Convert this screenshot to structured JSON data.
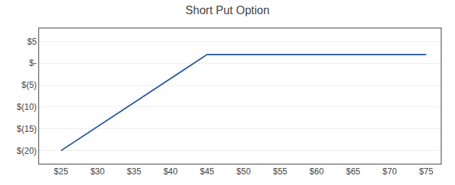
{
  "chart_data": {
    "type": "line",
    "title": "Short Put Option",
    "x": [
      25,
      45,
      50,
      55,
      60,
      65,
      70,
      75
    ],
    "values": [
      -20,
      2,
      2,
      2,
      2,
      2,
      2,
      2
    ],
    "color": "#2E5FA3",
    "xlim": [
      22,
      77
    ],
    "xticks": [
      {
        "value": 25,
        "label": "$25"
      },
      {
        "value": 30,
        "label": "$30"
      },
      {
        "value": 35,
        "label": "$35"
      },
      {
        "value": 40,
        "label": "$40"
      },
      {
        "value": 45,
        "label": "$45"
      },
      {
        "value": 50,
        "label": "$50"
      },
      {
        "value": 55,
        "label": "$55"
      },
      {
        "value": 60,
        "label": "$60"
      },
      {
        "value": 65,
        "label": "$65"
      },
      {
        "value": 70,
        "label": "$70"
      },
      {
        "value": 75,
        "label": "$75"
      }
    ],
    "ylim": [
      -23,
      8
    ],
    "yticks": [
      {
        "value": 5,
        "label": "$5"
      },
      {
        "value": 0,
        "label": "$-"
      },
      {
        "value": -5,
        "label": "$(5)"
      },
      {
        "value": -10,
        "label": "$(10)"
      },
      {
        "value": -15,
        "label": "$(15)"
      },
      {
        "value": -20,
        "label": "$(20)"
      }
    ],
    "grid": "y"
  }
}
